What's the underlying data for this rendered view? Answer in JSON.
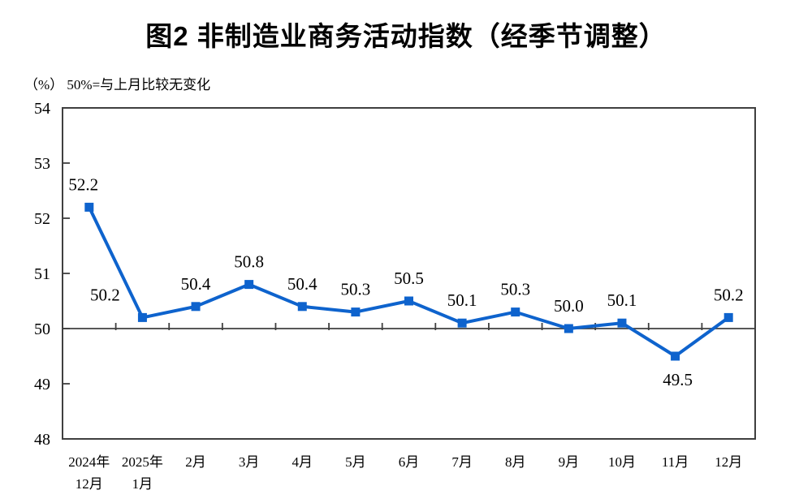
{
  "chart_data": {
    "type": "line",
    "title": "图2 非制造业商务活动指数（经季节调整）",
    "subtitle": "（%） 50%=与上月比较无变化",
    "categories": [
      "2024年\n12月",
      "2025年\n1月",
      "2月",
      "3月",
      "4月",
      "5月",
      "6月",
      "7月",
      "8月",
      "9月",
      "10月",
      "11月",
      "12月"
    ],
    "series": [
      {
        "name": "非制造业商务活动指数",
        "values": [
          52.2,
          50.2,
          50.4,
          50.8,
          50.4,
          50.3,
          50.5,
          50.1,
          50.3,
          50.0,
          50.1,
          49.5,
          50.2
        ]
      }
    ],
    "value_labels": [
      "52.2",
      "50.2",
      "50.4",
      "50.8",
      "50.4",
      "50.3",
      "50.5",
      "50.1",
      "50.3",
      "50.0",
      "50.1",
      "49.5",
      "50.2"
    ],
    "ylim": [
      48,
      54
    ],
    "yticks": [
      "48",
      "49",
      "50",
      "51",
      "52",
      "53",
      "54"
    ],
    "reference_line": 50,
    "grid": false,
    "legend": "none",
    "line_color": "#0e63cd",
    "marker_color": "#0e63cd",
    "axis_color": "#3f3f3f",
    "text_color": "#000000",
    "label_offsets": {
      "0": [
        -7,
        0
      ],
      "1": [
        -46,
        0
      ],
      "11": [
        3,
        57
      ]
    }
  }
}
